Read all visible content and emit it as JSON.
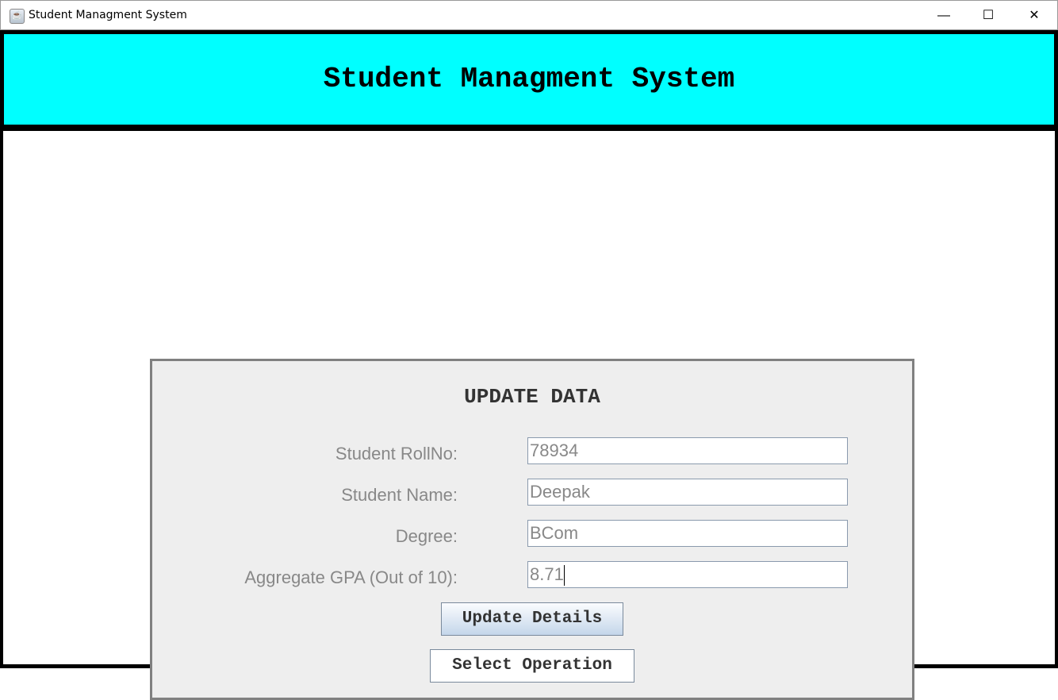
{
  "window": {
    "title": "Student Managment System",
    "minimize": "—",
    "maximize": "☐",
    "close": "✕"
  },
  "header": {
    "title": "Student Managment System"
  },
  "form": {
    "title": "UPDATE DATA",
    "fields": [
      {
        "label": "Student RollNo:",
        "value": "78934"
      },
      {
        "label": "Student Name:",
        "value": "Deepak"
      },
      {
        "label": "Degree:",
        "value": "BCom"
      },
      {
        "label": "Aggregate GPA (Out of 10):",
        "value": "8.71"
      }
    ],
    "update_button": "Update Details",
    "select_button": "Select Operation"
  }
}
